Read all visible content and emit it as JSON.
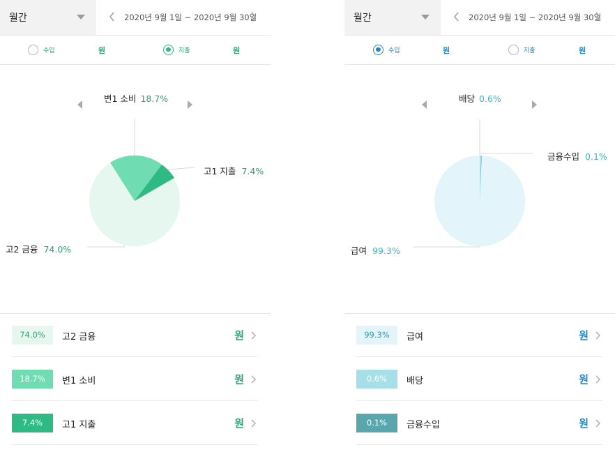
{
  "left": {
    "header": {
      "period_label": "월간",
      "date_range": "2020년 9월 1일 ~ 2020년 9월 30일"
    },
    "toggles": {
      "income_label": "수입",
      "expense_label": "지출",
      "income_won": "원",
      "expense_won": "원",
      "selected": "expense"
    },
    "carousel": {
      "title": "변1 소비",
      "title_pct": "18.7%"
    },
    "callouts": [
      {
        "label": "고1 지출",
        "pct": "7.4%"
      },
      {
        "label": "고2 금융",
        "pct": "74.0%"
      }
    ],
    "rows": [
      {
        "pct": "74.0%",
        "name": "고2 금융",
        "won": "원"
      },
      {
        "pct": "18.7%",
        "name": "변1 소비",
        "won": "원"
      },
      {
        "pct": "7.4%",
        "name": "고1 지출",
        "won": "원"
      }
    ],
    "colors": {
      "accent": "#2fba84",
      "slices": [
        "#e6f7ef",
        "#6fdcb2",
        "#2fba84"
      ],
      "text_pct": "#2fa37a"
    }
  },
  "right": {
    "header": {
      "period_label": "월간",
      "date_range": "2020년 9월 1일 ~ 2020년 9월 30일"
    },
    "toggles": {
      "income_label": "수입",
      "expense_label": "지출",
      "income_won": "원",
      "expense_won": "원",
      "selected": "income"
    },
    "carousel": {
      "title": "배당",
      "title_pct": "0.6%"
    },
    "callouts": [
      {
        "label": "금융수입",
        "pct": "0.1%"
      },
      {
        "label": "급여",
        "pct": "99.3%"
      }
    ],
    "rows": [
      {
        "pct": "99.3%",
        "name": "급여",
        "won": "원"
      },
      {
        "pct": "0.6%",
        "name": "배당",
        "won": "원"
      },
      {
        "pct": "0.1%",
        "name": "금융수입",
        "won": "원"
      }
    ],
    "colors": {
      "accent": "#1f86c9",
      "slices": [
        "#e3f4fb",
        "#a6dfe8",
        "#5aa6ad"
      ],
      "text_pct": "#3ab6d0"
    }
  },
  "icons": [
    "chevron-left-icon",
    "chevron-right-icon",
    "caret-down-icon",
    "triangle-left-icon",
    "triangle-right-icon"
  ]
}
